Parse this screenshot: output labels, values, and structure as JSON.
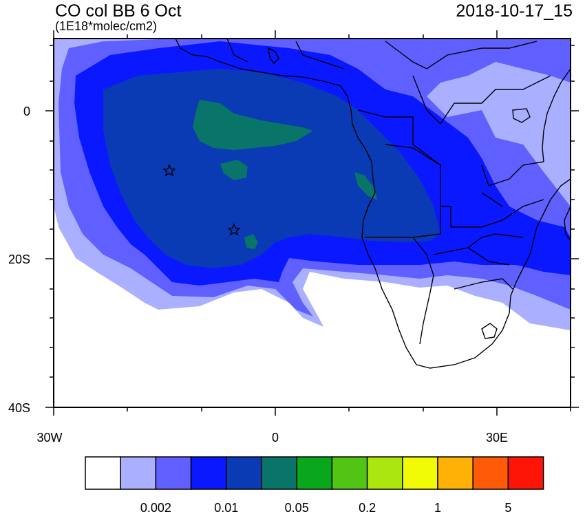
{
  "header": {
    "title": "CO col BB 6 Oct",
    "units": "(1E18*molec/cm2)",
    "timestamp": "2018-10-17_15"
  },
  "axes": {
    "y_ticks": [
      {
        "label": "0",
        "lat": 0
      },
      {
        "label": "20S",
        "lat": -20
      },
      {
        "label": "40S",
        "lat": -40
      }
    ],
    "x_ticks": [
      {
        "label": "30W",
        "lon": -30
      },
      {
        "label": "0",
        "lon": 0
      },
      {
        "label": "30E",
        "lon": 30
      }
    ],
    "lon_range": [
      -30,
      40
    ],
    "lat_range": [
      -40,
      10
    ]
  },
  "markers": [
    {
      "name": "star-marker-1",
      "lon": -14.5,
      "lat": -8
    },
    {
      "name": "star-marker-2",
      "lon": -5.7,
      "lat": -16
    }
  ],
  "colorbar": {
    "colors": [
      "#ffffff",
      "#aab0ff",
      "#5f60ff",
      "#0a18ff",
      "#0a3ab4",
      "#087568",
      "#09a71b",
      "#52c514",
      "#abe60e",
      "#f1fb05",
      "#ffb205",
      "#ff5a08",
      "#ff1408"
    ],
    "labels": [
      {
        "text": "0.002",
        "after_box": 2
      },
      {
        "text": "0.01",
        "after_box": 4
      },
      {
        "text": "0.05",
        "after_box": 6
      },
      {
        "text": "0.2",
        "after_box": 8
      },
      {
        "text": "1",
        "after_box": 10
      },
      {
        "text": "5",
        "after_box": 12
      }
    ]
  }
}
